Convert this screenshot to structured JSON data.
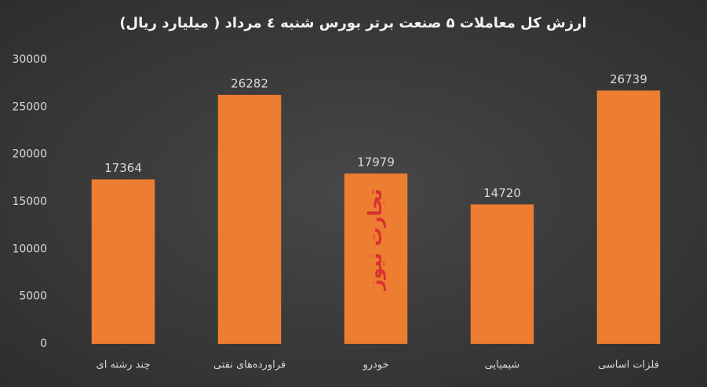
{
  "chart_data": {
    "type": "bar",
    "title": "ارزش کل معاملات ۵ صنعت برتر بورس شنبه ٤ مرداد ( میلیارد ریال)",
    "categories": [
      "چند رشته ای",
      "فراورده‌های نفتی",
      "خودرو",
      "شیمیایی",
      "فلزات اساسی"
    ],
    "values": [
      17364,
      26282,
      17979,
      14720,
      26739
    ],
    "color": "#ed7d31",
    "ylim": [
      0,
      30000
    ],
    "yticks": [
      0,
      5000,
      10000,
      15000,
      20000,
      25000,
      30000
    ],
    "grid": false,
    "watermark": "تجارت نیوز"
  }
}
